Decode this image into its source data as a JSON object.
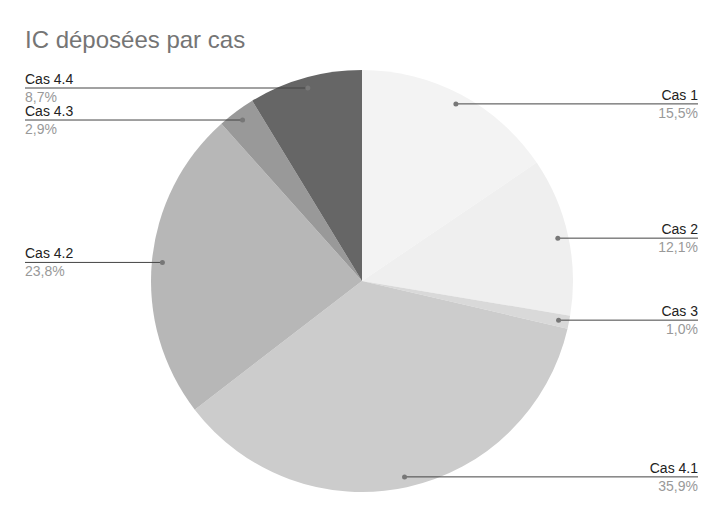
{
  "chart_data": {
    "type": "pie",
    "title": "IC déposées par cas",
    "categories": [
      "Cas 1",
      "Cas 2",
      "Cas 3",
      "Cas 4.1",
      "Cas 4.2",
      "Cas 4.3",
      "Cas 4.4"
    ],
    "values": [
      15.5,
      12.1,
      1.0,
      35.9,
      23.8,
      2.9,
      8.7
    ],
    "value_labels": [
      "15,5%",
      "12,1%",
      "1,0%",
      "35,9%",
      "23,8%",
      "2,9%",
      "8,7%"
    ],
    "colors": [
      "#f3f3f3",
      "#efefef",
      "#d9d9d9",
      "#cccccc",
      "#b7b7b7",
      "#999999",
      "#666666"
    ],
    "data_labels": true
  }
}
